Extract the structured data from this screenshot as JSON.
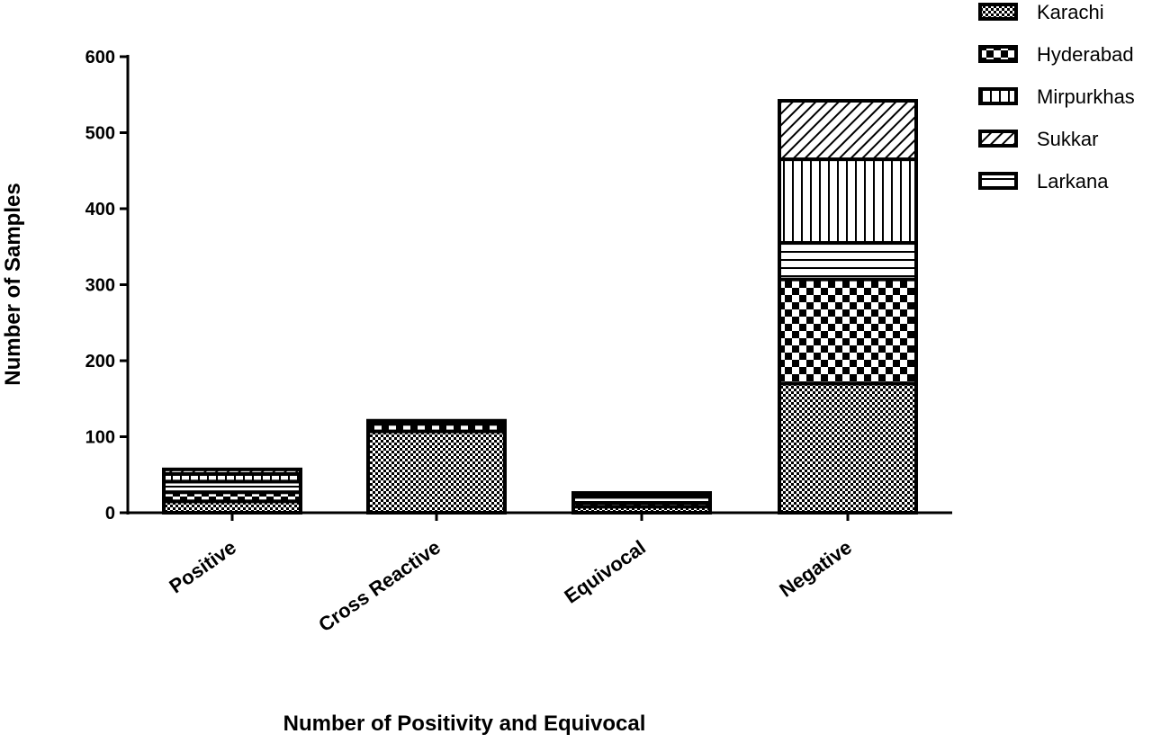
{
  "chart_data": {
    "type": "bar",
    "stacked": true,
    "title": "",
    "xlabel": "Number of Positivity and Equivocal",
    "ylabel": "Number of Samples",
    "ylim": [
      0,
      600
    ],
    "yticks": [
      0,
      100,
      200,
      300,
      400,
      500,
      600
    ],
    "categories": [
      "Positive",
      "Cross Reactive",
      "Equivocal",
      "Negative"
    ],
    "series": [
      {
        "name": "Karachi",
        "pattern": "checker-small",
        "values": [
          15,
          107,
          8,
          170
        ]
      },
      {
        "name": "Hyderabad",
        "pattern": "checker-large",
        "values": [
          12,
          10,
          5,
          137
        ]
      },
      {
        "name": "Larkana",
        "pattern": "horizontal-lines",
        "values": [
          14,
          2,
          8,
          48
        ]
      },
      {
        "name": "Mirpurkhas",
        "pattern": "vertical-lines",
        "values": [
          10,
          1,
          3,
          110
        ]
      },
      {
        "name": "Sukkar",
        "pattern": "diagonal-lines",
        "values": [
          6,
          1,
          2,
          77
        ]
      }
    ],
    "legend": {
      "position": "top-right",
      "entries": [
        "Karachi",
        "Hyderabad",
        "Mirpurkhas",
        "Sukkar",
        "Larkana"
      ]
    },
    "grid": false
  }
}
